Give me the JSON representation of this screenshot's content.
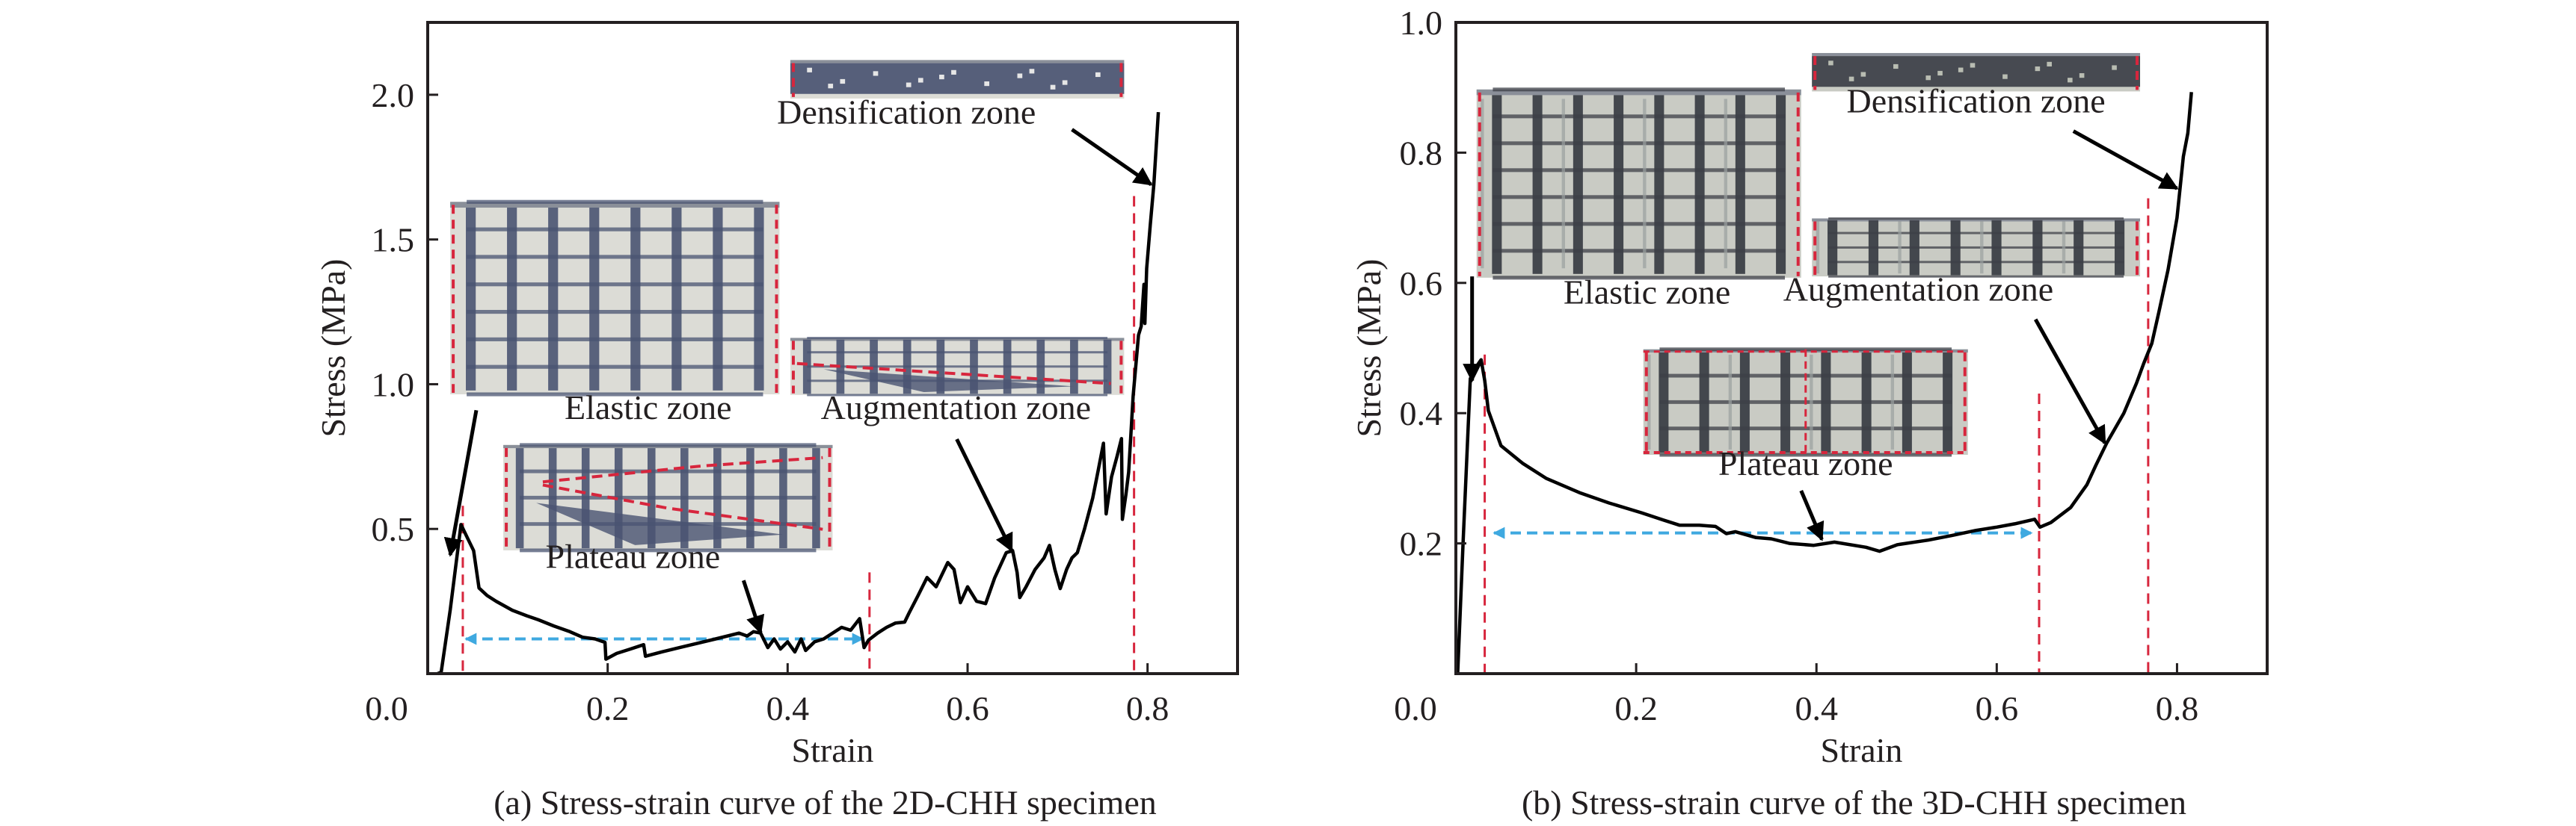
{
  "figure": {
    "colors": {
      "curve": "#000000",
      "axis": "#231f20",
      "zone_boundary": "#d7263d",
      "plateau_range_arrow": "#3fa9e0",
      "photo_dark": "#4a5472",
      "photo_light": "#dcdcd6",
      "photo3d_dark": "#3c3f47",
      "photo3d_light": "#c9cbc4"
    }
  },
  "chart_data": [
    {
      "id": "a",
      "type": "line",
      "caption": "(a) Stress-strain curve of the 2D-CHH specimen",
      "title": "",
      "xlabel": "Strain",
      "ylabel": "Stress (MPa)",
      "xlim": [
        0,
        0.9
      ],
      "ylim": [
        0,
        2.25
      ],
      "xticks": [
        0.0,
        0.2,
        0.4,
        0.6,
        0.8
      ],
      "xtick_labels": [
        "0.0",
        "0.2",
        "0.4",
        "0.6",
        "0.8"
      ],
      "yticks": [
        0.5,
        1.0,
        1.5,
        2.0
      ],
      "ytick_labels": [
        "0.5",
        "1.0",
        "1.5",
        "2.0"
      ],
      "grid": false,
      "legend": "none",
      "series": [
        {
          "name": "2D-CHH",
          "x": [
            0.011,
            0.015,
            0.025,
            0.037,
            0.044,
            0.051,
            0.057,
            0.066,
            0.076,
            0.094,
            0.11,
            0.123,
            0.14,
            0.158,
            0.172,
            0.186,
            0.197,
            0.198,
            0.21,
            0.225,
            0.24,
            0.242,
            0.26,
            0.28,
            0.3,
            0.32,
            0.346,
            0.355,
            0.362,
            0.37,
            0.378,
            0.385,
            0.392,
            0.4,
            0.408,
            0.415,
            0.42,
            0.43,
            0.44,
            0.45,
            0.46,
            0.47,
            0.48,
            0.482,
            0.485,
            0.49,
            0.5,
            0.51,
            0.52,
            0.53,
            0.535,
            0.545,
            0.555,
            0.565,
            0.578,
            0.585,
            0.592,
            0.6,
            0.61,
            0.62,
            0.63,
            0.643,
            0.65,
            0.655,
            0.658,
            0.665,
            0.675,
            0.685,
            0.691,
            0.697,
            0.703,
            0.71,
            0.716,
            0.722,
            0.73,
            0.739,
            0.745,
            0.751,
            0.754,
            0.76,
            0.766,
            0.771,
            0.772,
            0.776,
            0.779,
            0.784,
            0.79,
            0.793,
            0.796,
            0.797,
            0.799,
            0.803,
            0.807,
            0.812
          ],
          "y": [
            0.0,
            0.005,
            0.22,
            0.515,
            0.47,
            0.425,
            0.296,
            0.27,
            0.25,
            0.219,
            0.2,
            0.186,
            0.165,
            0.145,
            0.126,
            0.12,
            0.108,
            0.05,
            0.07,
            0.085,
            0.1,
            0.06,
            0.075,
            0.09,
            0.105,
            0.12,
            0.14,
            0.13,
            0.145,
            0.14,
            0.09,
            0.12,
            0.085,
            0.11,
            0.075,
            0.12,
            0.08,
            0.11,
            0.12,
            0.14,
            0.16,
            0.15,
            0.19,
            0.15,
            0.09,
            0.116,
            0.14,
            0.16,
            0.175,
            0.178,
            0.21,
            0.27,
            0.332,
            0.3,
            0.384,
            0.36,
            0.245,
            0.3,
            0.25,
            0.242,
            0.33,
            0.418,
            0.425,
            0.35,
            0.263,
            0.3,
            0.36,
            0.4,
            0.443,
            0.36,
            0.294,
            0.36,
            0.4,
            0.418,
            0.5,
            0.606,
            0.7,
            0.796,
            0.552,
            0.68,
            0.75,
            0.812,
            0.533,
            0.62,
            0.696,
            0.959,
            1.17,
            1.2,
            1.345,
            1.21,
            1.4,
            1.55,
            1.69,
            1.94
          ]
        }
      ],
      "zone_boundaries_strain": [
        0.039,
        0.491,
        0.785
      ],
      "zone_boundary_tops_stress": [
        0.58,
        0.35,
        1.65
      ],
      "plateau_range": {
        "from": 0.039,
        "to": 0.487,
        "stress": 0.12
      },
      "annotations": [
        {
          "name": "elastic",
          "text": "Elastic zone",
          "arrow_from": [
            0.054,
            0.91
          ],
          "arrow_to": [
            0.025,
            0.41
          ],
          "photo": {
            "x0": 0.025,
            "x1": 0.391,
            "y0": 0.965,
            "y1": 1.63,
            "style": "2d-regular"
          },
          "label_at": [
            0.245,
            0.88
          ]
        },
        {
          "name": "plateau",
          "text": "Plateau zone",
          "arrow_from": [
            0.351,
            0.322
          ],
          "arrow_to": [
            0.37,
            0.142
          ],
          "photo": {
            "x0": 0.084,
            "x1": 0.45,
            "y0": 0.426,
            "y1": 0.79,
            "style": "2d-sheared"
          },
          "label_at": [
            0.228,
            0.365
          ]
        },
        {
          "name": "augmentation",
          "text": "Augmentation zone",
          "arrow_from": [
            0.588,
            0.81
          ],
          "arrow_to": [
            0.649,
            0.425
          ],
          "photo": {
            "x0": 0.403,
            "x1": 0.774,
            "y0": 0.963,
            "y1": 1.16,
            "style": "2d-crushed"
          },
          "label_at": [
            0.587,
            0.88
          ]
        },
        {
          "name": "densification",
          "text": "Densification zone",
          "arrow_from": [
            0.716,
            1.88
          ],
          "arrow_to": [
            0.804,
            1.69
          ],
          "photo": {
            "x0": 0.403,
            "x1": 0.774,
            "y0": 1.987,
            "y1": 2.12,
            "style": "2d-dense"
          },
          "label_at": [
            0.532,
            1.9
          ]
        }
      ]
    },
    {
      "id": "b",
      "type": "line",
      "caption": "(b) Stress-strain curve of the 3D-CHH specimen",
      "title": "",
      "xlabel": "Strain",
      "ylabel": "Stress (MPa)",
      "xlim": [
        0,
        0.9
      ],
      "ylim": [
        0,
        1.0
      ],
      "xticks": [
        0.0,
        0.2,
        0.4,
        0.6,
        0.8
      ],
      "xtick_labels": [
        "0.0",
        "0.2",
        "0.4",
        "0.6",
        "0.8"
      ],
      "yticks": [
        0.2,
        0.4,
        0.6,
        0.8,
        1.0
      ],
      "ytick_labels": [
        "0.2",
        "0.4",
        "0.6",
        "0.8",
        "1.0"
      ],
      "grid": false,
      "legend": "none",
      "series": [
        {
          "name": "3D-CHH",
          "x": [
            0.002,
            0.008,
            0.016,
            0.022,
            0.028,
            0.032,
            0.036,
            0.05,
            0.074,
            0.1,
            0.137,
            0.17,
            0.206,
            0.23,
            0.248,
            0.27,
            0.288,
            0.3,
            0.31,
            0.333,
            0.35,
            0.37,
            0.397,
            0.42,
            0.455,
            0.47,
            0.49,
            0.524,
            0.55,
            0.577,
            0.6,
            0.62,
            0.642,
            0.648,
            0.66,
            0.682,
            0.7,
            0.71,
            0.722,
            0.741,
            0.755,
            0.763,
            0.772,
            0.78,
            0.79,
            0.8,
            0.807,
            0.812,
            0.816
          ],
          "y": [
            0.0,
            0.2,
            0.453,
            0.47,
            0.482,
            0.45,
            0.404,
            0.35,
            0.323,
            0.3,
            0.278,
            0.262,
            0.247,
            0.236,
            0.228,
            0.228,
            0.226,
            0.215,
            0.218,
            0.209,
            0.207,
            0.2,
            0.197,
            0.202,
            0.194,
            0.188,
            0.198,
            0.205,
            0.212,
            0.22,
            0.225,
            0.23,
            0.237,
            0.225,
            0.232,
            0.255,
            0.29,
            0.32,
            0.354,
            0.4,
            0.446,
            0.476,
            0.507,
            0.556,
            0.62,
            0.7,
            0.794,
            0.83,
            0.893
          ]
        }
      ],
      "zone_boundaries_strain": [
        0.032,
        0.647,
        0.768
      ],
      "zone_boundary_tops_stress": [
        0.49,
        0.43,
        0.73
      ],
      "plateau_range": {
        "from": 0.039,
        "to": 0.642,
        "stress": 0.216
      },
      "annotations": [
        {
          "name": "elastic",
          "text": "Elastic zone",
          "arrow_from": [
            0.018,
            0.61
          ],
          "arrow_to": [
            0.018,
            0.45
          ],
          "photo": {
            "x0": 0.023,
            "x1": 0.383,
            "y0": 0.608,
            "y1": 0.897,
            "style": "3d-regular"
          },
          "label_at": [
            0.212,
            0.568
          ]
        },
        {
          "name": "plateau",
          "text": "Plateau zone",
          "arrow_from": [
            0.383,
            0.281
          ],
          "arrow_to": [
            0.406,
            0.206
          ],
          "photo": {
            "x0": 0.208,
            "x1": 0.568,
            "y0": 0.336,
            "y1": 0.498,
            "style": "3d-plateau"
          },
          "label_at": [
            0.388,
            0.305
          ]
        },
        {
          "name": "augmentation",
          "text": "Augmentation zone",
          "arrow_from": [
            0.643,
            0.544
          ],
          "arrow_to": [
            0.72,
            0.354
          ],
          "photo": {
            "x0": 0.395,
            "x1": 0.759,
            "y0": 0.61,
            "y1": 0.699,
            "style": "3d-aug"
          },
          "label_at": [
            0.513,
            0.573
          ]
        },
        {
          "name": "densification",
          "text": "Densification zone",
          "arrow_from": [
            0.685,
            0.833
          ],
          "arrow_to": [
            0.8,
            0.745
          ],
          "photo": {
            "x0": 0.395,
            "x1": 0.759,
            "y0": 0.894,
            "y1": 0.953,
            "style": "3d-dense"
          },
          "label_at": [
            0.577,
            0.862
          ]
        }
      ]
    }
  ]
}
